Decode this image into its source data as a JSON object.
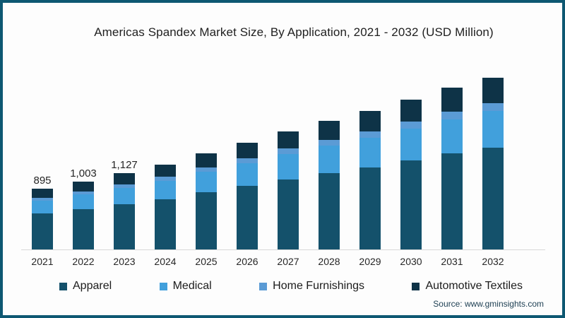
{
  "title": "Americas Spandex Market Size, By Application, 2021 - 2032 (USD Million)",
  "source": "Source: www.gminsights.com",
  "colors": {
    "frame_border": "#0e5872",
    "background": "#fdfdfd",
    "apparel": "#14516b",
    "medical": "#41a0dc",
    "home_furnishings": "#5b9bd5",
    "automotive_textiles": "#0e3347"
  },
  "chart_data": {
    "type": "bar",
    "stacked": true,
    "title": "Americas Spandex Market Size, By Application, 2021 - 2032 (USD Million)",
    "xlabel": "",
    "ylabel": "USD Million",
    "ylim": [
      0,
      2750
    ],
    "grid": false,
    "legend_position": "bottom",
    "categories": [
      "2021",
      "2022",
      "2023",
      "2024",
      "2025",
      "2026",
      "2027",
      "2028",
      "2029",
      "2030",
      "2031",
      "2032"
    ],
    "series": [
      {
        "name": "Apparel",
        "color": "#14516b",
        "values": [
          531,
          595,
          668,
          744,
          842,
          935,
          1034,
          1125,
          1213,
          1311,
          1413,
          1502
        ]
      },
      {
        "name": "Medical",
        "color": "#41a0dc",
        "values": [
          191,
          214,
          240,
          267,
          302,
          336,
          371,
          404,
          436,
          471,
          508,
          539
        ]
      },
      {
        "name": "Home Furnishings",
        "color": "#5b9bd5",
        "values": [
          42,
          47,
          53,
          59,
          67,
          74,
          82,
          89,
          96,
          104,
          112,
          119
        ]
      },
      {
        "name": "Automotive Textiles",
        "color": "#0e3347",
        "values": [
          131,
          147,
          166,
          185,
          209,
          232,
          256,
          279,
          301,
          324,
          350,
          372
        ]
      }
    ],
    "totals": [
      895,
      1003,
      1127,
      1255,
      1420,
      1577,
      1743,
      1897,
      2046,
      2210,
      2383,
      2532
    ],
    "total_labels": [
      "895",
      "1,003",
      "1,127",
      "",
      "",
      "",
      "",
      "",
      "",
      "",
      "",
      ""
    ]
  }
}
